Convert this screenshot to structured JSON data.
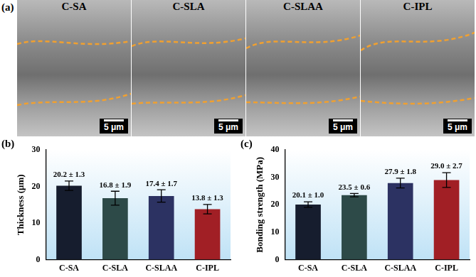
{
  "panel_a": {
    "label": "(a)",
    "images": [
      {
        "title": "C-SA",
        "scale_bar": "5 μm"
      },
      {
        "title": "C-SLA",
        "scale_bar": "5 μm"
      },
      {
        "title": "C-SLAA",
        "scale_bar": "5 μm"
      },
      {
        "title": "C-IPL",
        "scale_bar": "5 μm"
      }
    ]
  },
  "chart_data": [
    {
      "type": "bar",
      "annotations": [
        "(b)"
      ],
      "y_label": "Thickness (μm)",
      "categories": [
        "C-SA",
        "C-SLA",
        "C-SLAA",
        "C-IPL"
      ],
      "values": [
        20.2,
        16.8,
        17.4,
        13.8
      ],
      "errors": [
        1.3,
        1.9,
        1.7,
        1.3
      ],
      "value_labels": [
        "20.2 ± 1.3",
        "16.8 ± 1.9",
        "17.4 ± 1.7",
        "13.8 ± 1.3"
      ],
      "data_labels": true,
      "colors": [
        "#161d2e",
        "#2d4a48",
        "#2c3262",
        "#a11f25"
      ],
      "ylim": [
        0,
        30
      ],
      "yticks": [
        0,
        10,
        20,
        30
      ],
      "grid": false
    },
    {
      "type": "bar",
      "annotations": [
        "(c)"
      ],
      "y_label": "Bonding strength (MPa)",
      "categories": [
        "C-SA",
        "C-SLA",
        "C-SLAA",
        "C-IPL"
      ],
      "values": [
        20.1,
        23.5,
        27.9,
        29.0
      ],
      "errors": [
        1.0,
        0.6,
        1.8,
        2.7
      ],
      "value_labels": [
        "20.1 ± 1.0",
        "23.5 ± 0.6",
        "27.9 ± 1.8",
        "29.0 ± 2.7"
      ],
      "data_labels": true,
      "colors": [
        "#161d2e",
        "#2d4a48",
        "#2c3262",
        "#a11f25"
      ],
      "ylim": [
        0,
        40
      ],
      "yticks": [
        0,
        10,
        20,
        30,
        40
      ],
      "grid": false
    }
  ]
}
